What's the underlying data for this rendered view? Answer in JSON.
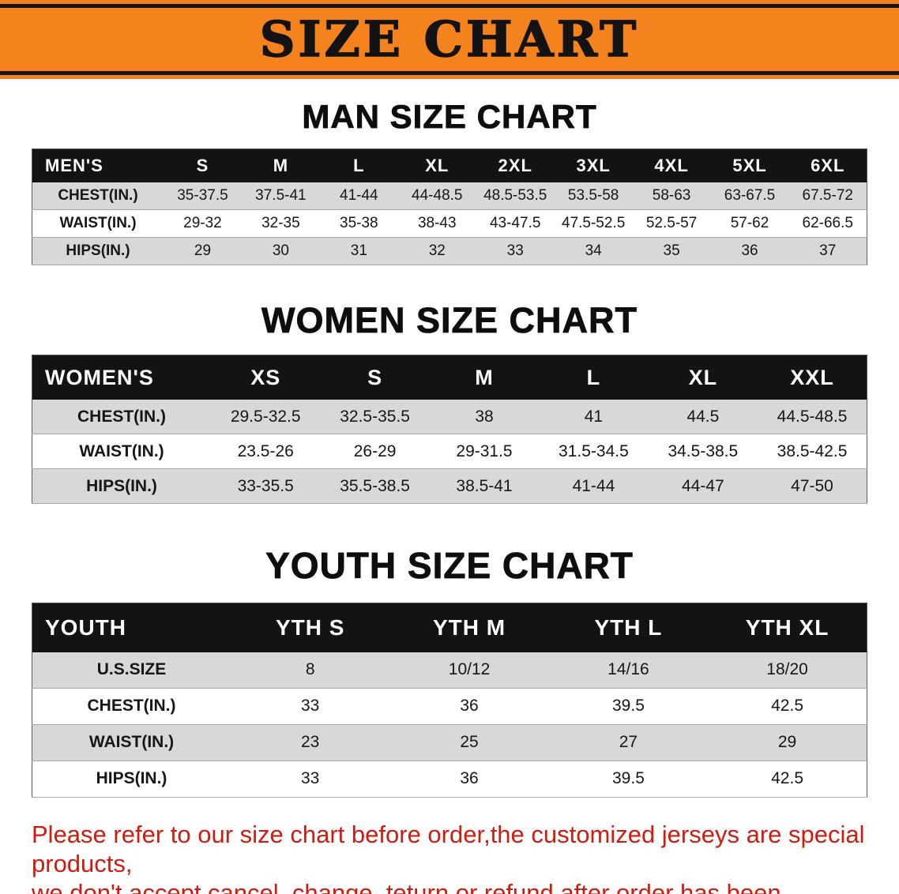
{
  "colors": {
    "banner_bg": "#F5831D",
    "table_header_bg": "#131313",
    "row_stripe": "#D8D8D8",
    "footer_text": "#D01B10"
  },
  "banner": {
    "title": "SIZE CHART"
  },
  "sections": [
    {
      "id": "men",
      "heading": "MAN SIZE CHART",
      "table": {
        "header": [
          "MEN'S",
          "S",
          "M",
          "L",
          "XL",
          "2XL",
          "3XL",
          "4XL",
          "5XL",
          "6XL"
        ],
        "rows": [
          [
            "CHEST(IN.)",
            "35-37.5",
            "37.5-41",
            "41-44",
            "44-48.5",
            "48.5-53.5",
            "53.5-58",
            "58-63",
            "63-67.5",
            "67.5-72"
          ],
          [
            "WAIST(IN.)",
            "29-32",
            "32-35",
            "35-38",
            "38-43",
            "43-47.5",
            "47.5-52.5",
            "52.5-57",
            "57-62",
            "62-66.5"
          ],
          [
            "HIPS(IN.)",
            "29",
            "30",
            "31",
            "32",
            "33",
            "34",
            "35",
            "36",
            "37"
          ]
        ]
      }
    },
    {
      "id": "women",
      "heading": "WOMEN SIZE CHART",
      "table": {
        "header": [
          "WOMEN'S",
          "XS",
          "S",
          "M",
          "L",
          "XL",
          "XXL"
        ],
        "rows": [
          [
            "CHEST(IN.)",
            "29.5-32.5",
            "32.5-35.5",
            "38",
            "41",
            "44.5",
            "44.5-48.5"
          ],
          [
            "WAIST(IN.)",
            "23.5-26",
            "26-29",
            "29-31.5",
            "31.5-34.5",
            "34.5-38.5",
            "38.5-42.5"
          ],
          [
            "HIPS(IN.)",
            "33-35.5",
            "35.5-38.5",
            "38.5-41",
            "41-44",
            "44-47",
            "47-50"
          ]
        ]
      }
    },
    {
      "id": "youth",
      "heading": "YOUTH SIZE CHART",
      "table": {
        "header": [
          "YOUTH",
          "YTH S",
          "YTH M",
          "YTH L",
          "YTH XL"
        ],
        "rows": [
          [
            "U.S.SIZE",
            "8",
            "10/12",
            "14/16",
            "18/20"
          ],
          [
            "CHEST(IN.)",
            "33",
            "36",
            "39.5",
            "42.5"
          ],
          [
            "WAIST(IN.)",
            "23",
            "25",
            "27",
            "29"
          ],
          [
            "HIPS(IN.)",
            "33",
            "36",
            "39.5",
            "42.5"
          ]
        ]
      }
    }
  ],
  "footer": {
    "line1": "Please refer to our size chart before order,the customized jerseys are special products,",
    "line2": "we don't accept cancel, change, teturn or refund after order has been placed!"
  }
}
